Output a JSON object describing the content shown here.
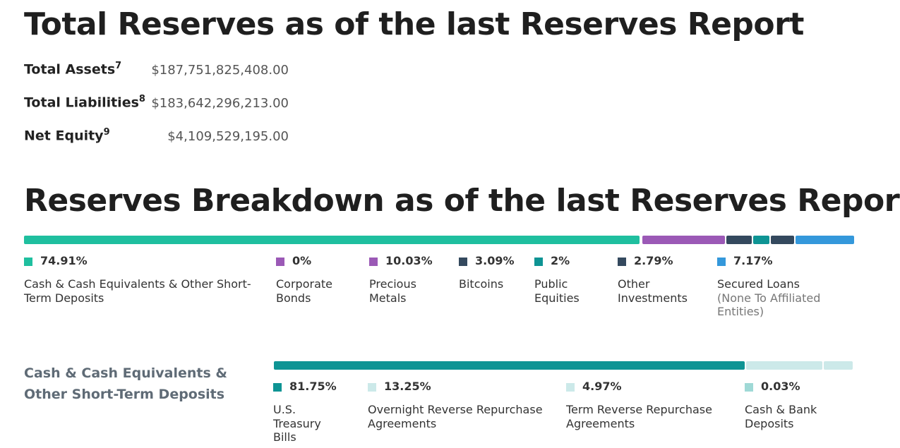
{
  "title_totals": "Total Reserves as of the last Reserves Report",
  "totals": [
    {
      "label": "Total Assets",
      "sup": "7",
      "value": "$187,751,825,408.00"
    },
    {
      "label": "Total Liabilities",
      "sup": "8",
      "value": "$183,642,296,213.00"
    },
    {
      "label": "Net Equity",
      "sup": "9",
      "value": "$4,109,529,195.00"
    }
  ],
  "title_breakdown": "Reserves Breakdown as of the last Reserves Report",
  "breakdown": [
    {
      "pct": "74.91%",
      "label": "Cash & Cash Equivalents & Other Short-Term Deposits",
      "sublabel": "",
      "value": 74.91,
      "color": "#1fbf9f"
    },
    {
      "pct": "0%",
      "label": "Corporate Bonds",
      "sublabel": "",
      "value": 0,
      "color": "#9b59b6"
    },
    {
      "pct": "10.03%",
      "label": "Precious Metals",
      "sublabel": "",
      "value": 10.03,
      "color": "#9b59b6"
    },
    {
      "pct": "3.09%",
      "label": "Bitcoins",
      "sublabel": "",
      "value": 3.09,
      "color": "#34495e"
    },
    {
      "pct": "2%",
      "label": "Public Equities",
      "sublabel": "",
      "value": 2,
      "color": "#0e9494"
    },
    {
      "pct": "2.79%",
      "label": "Other Investments",
      "sublabel": "",
      "value": 2.79,
      "color": "#34495e"
    },
    {
      "pct": "7.17%",
      "label": "Secured Loans",
      "sublabel": "(None To Affiliated Entities)",
      "value": 7.17,
      "color": "#3498db"
    }
  ],
  "cash_section": {
    "title": "Cash & Cash Equivalents & Other Short-Term Deposits",
    "items": [
      {
        "pct": "81.75%",
        "label": "U.S. Treasury Bills",
        "value": 81.75,
        "color": "#0e9494"
      },
      {
        "pct": "13.25%",
        "label": "Overnight Reverse Repurchase Agreements",
        "value": 13.25,
        "color": "#cce9e9"
      },
      {
        "pct": "4.97%",
        "label": "Term Reverse Repurchase Agreements",
        "value": 4.97,
        "color": "#cce9e9"
      },
      {
        "pct": "0.03%",
        "label": "Cash & Bank Deposits",
        "value": 0.03,
        "color": "#9fd9d6"
      }
    ]
  }
}
